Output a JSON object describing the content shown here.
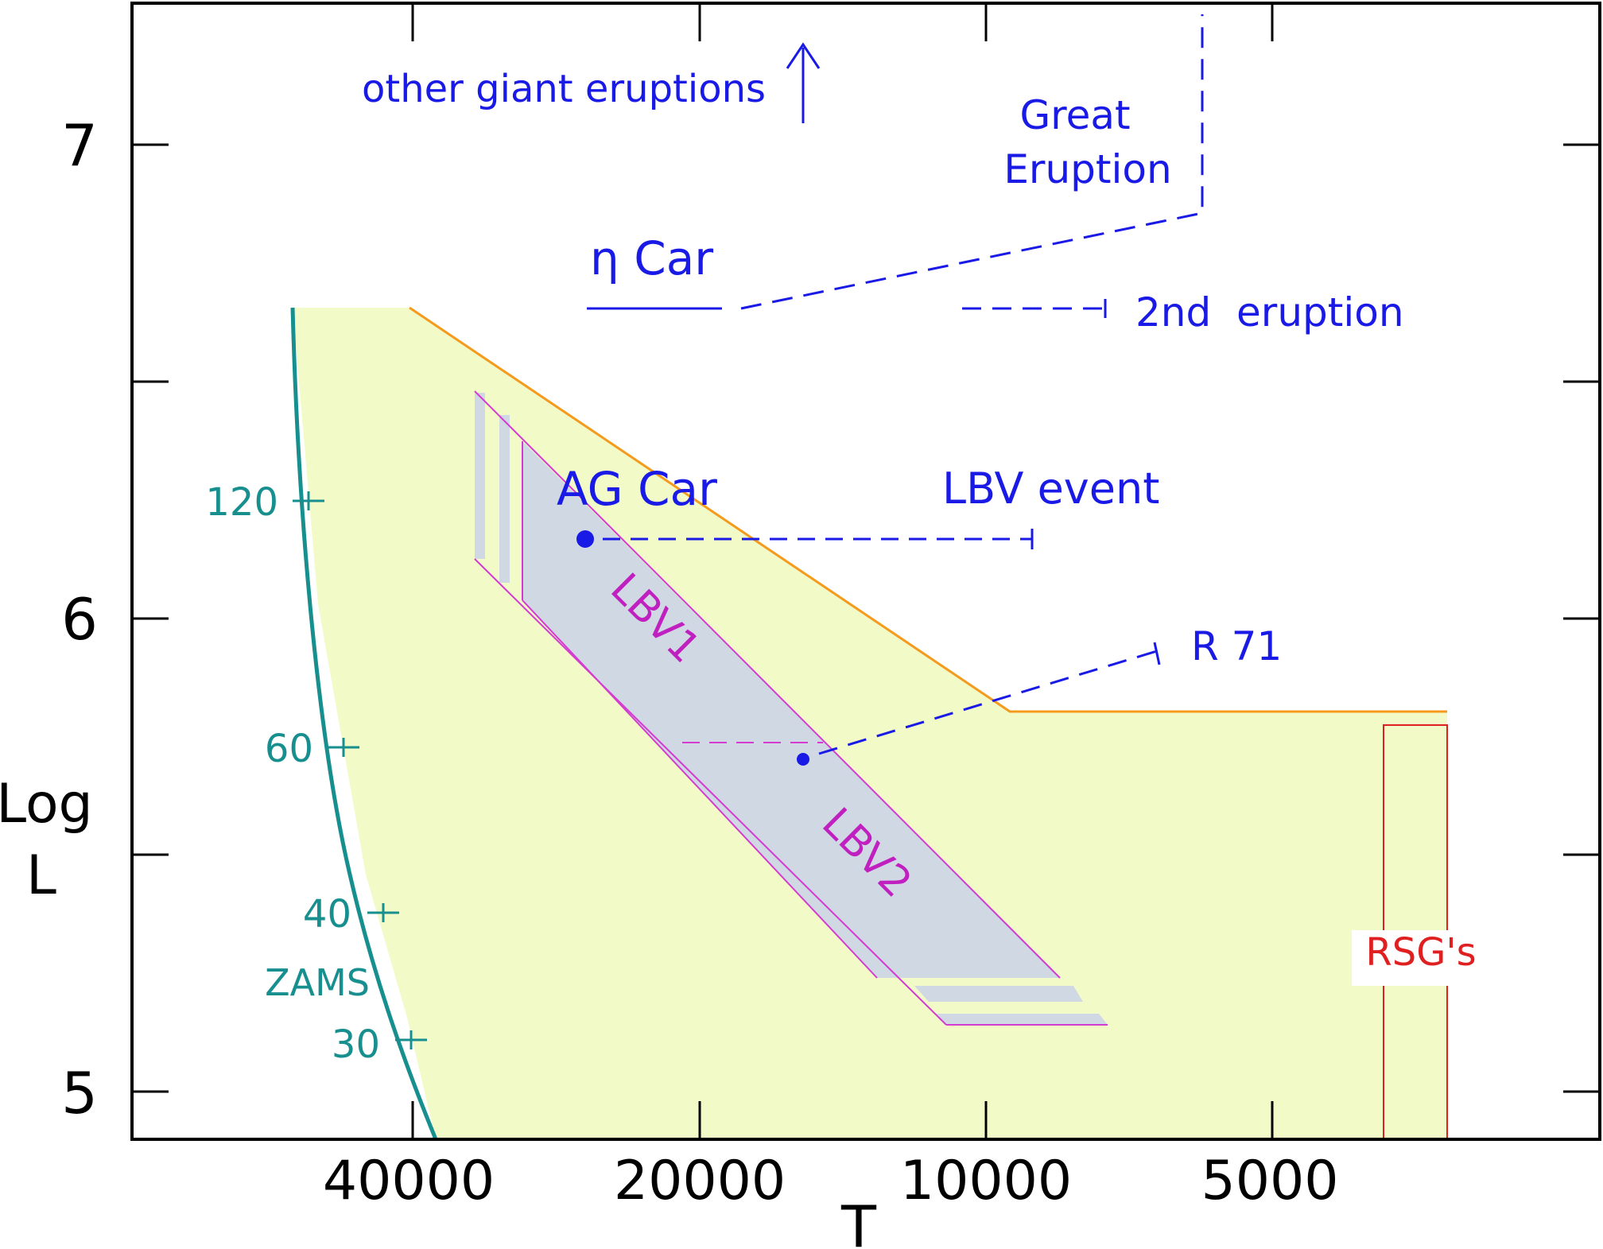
{
  "chart_data": {
    "type": "diagram",
    "xlabel": "T",
    "ylabel_line1": "Log",
    "ylabel_line2": "L",
    "x_ticks": [
      {
        "label": "40000",
        "value": 40000
      },
      {
        "label": "20000",
        "value": 20000
      },
      {
        "label": "10000",
        "value": 10000
      },
      {
        "label": "5000",
        "value": 5000
      }
    ],
    "y_ticks": [
      {
        "label": "5",
        "value": 5
      },
      {
        "label": "6",
        "value": 6
      },
      {
        "label": "7",
        "value": 7
      }
    ],
    "xlim": [
      77700,
      2750
    ],
    "ylim": [
      4.9,
      7.3
    ],
    "x_scale": "log, reversed",
    "zams": {
      "label": "ZAMS",
      "mass_ticks": [
        {
          "label": "120",
          "x": 47000,
          "y": 6.245
        },
        {
          "label": "60",
          "x": 44000,
          "y": 5.725
        },
        {
          "label": "40",
          "x": 42000,
          "y": 5.375
        },
        {
          "label": "30",
          "x": 41000,
          "y": 5.105
        }
      ]
    },
    "humphreys_davidson_limit": {
      "points": [
        [
          54000,
          6.64
        ],
        [
          40000,
          6.64
        ],
        [
          9500,
          5.79
        ],
        [
          3000,
          5.79
        ]
      ]
    },
    "lbv_strip": {
      "labels": [
        "LBV1",
        "LBV2"
      ]
    },
    "rsg_region": {
      "label": "RSG's",
      "x_range": [
        3400,
        2650
      ],
      "y_range": [
        5.0,
        5.77
      ]
    },
    "objects": [
      {
        "name": "η Car",
        "label": "η Car",
        "annotations": [
          "Great Eruption",
          "2nd  eruption"
        ]
      },
      {
        "name": "AG Car",
        "label": "AG Car",
        "point": [
          23000,
          6.17
        ],
        "annotation": "LBV event"
      },
      {
        "name": "R 71",
        "label": "R 71",
        "point": [
          15500,
          5.7
        ]
      }
    ],
    "annotation_top": "other giant eruptions",
    "colors": {
      "region_fill": "#f2fbc8",
      "strip_fill": "#d0d8e4",
      "hd_limit": "#f59a1c",
      "zams": "#178f8f",
      "strip_edge": "#d43bd1",
      "annotation": "#1a1ae6",
      "rsg": "#e02020"
    }
  }
}
